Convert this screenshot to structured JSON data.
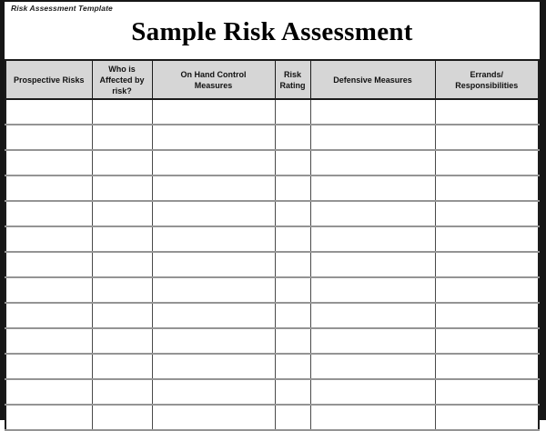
{
  "page": {
    "template_label": "Risk Assessment Template",
    "title": "Sample Risk Assessment"
  },
  "table": {
    "headers": [
      "Prospective Risks",
      "Who is\nAffected by\nrisk?",
      "On Hand Control\nMeasures",
      "Risk\nRating",
      "Defensive Measures",
      "Errands/\nResponsibilities"
    ],
    "body_rows": [
      [
        "",
        "",
        "",
        "",
        "",
        ""
      ],
      [
        "",
        "",
        "",
        "",
        "",
        ""
      ],
      [
        "",
        "",
        "",
        "",
        "",
        ""
      ],
      [
        "",
        "",
        "",
        "",
        "",
        ""
      ],
      [
        "",
        "",
        "",
        "",
        "",
        ""
      ],
      [
        "",
        "",
        "",
        "",
        "",
        ""
      ],
      [
        "",
        "",
        "",
        "",
        "",
        ""
      ],
      [
        "",
        "",
        "",
        "",
        "",
        ""
      ],
      [
        "",
        "",
        "",
        "",
        "",
        ""
      ],
      [
        "",
        "",
        "",
        "",
        "",
        ""
      ],
      [
        "",
        "",
        "",
        "",
        "",
        ""
      ],
      [
        "",
        "",
        "",
        "",
        "",
        ""
      ],
      [
        "",
        "",
        "",
        "",
        "",
        ""
      ]
    ]
  },
  "colors": {
    "page_border": "#161616",
    "table_border": "#1c1c1c",
    "header_bg": "#d6d6d6",
    "header_text": "#111111",
    "grid_horizontal": "#949494",
    "grid_vertical": "#4a4a4a"
  }
}
